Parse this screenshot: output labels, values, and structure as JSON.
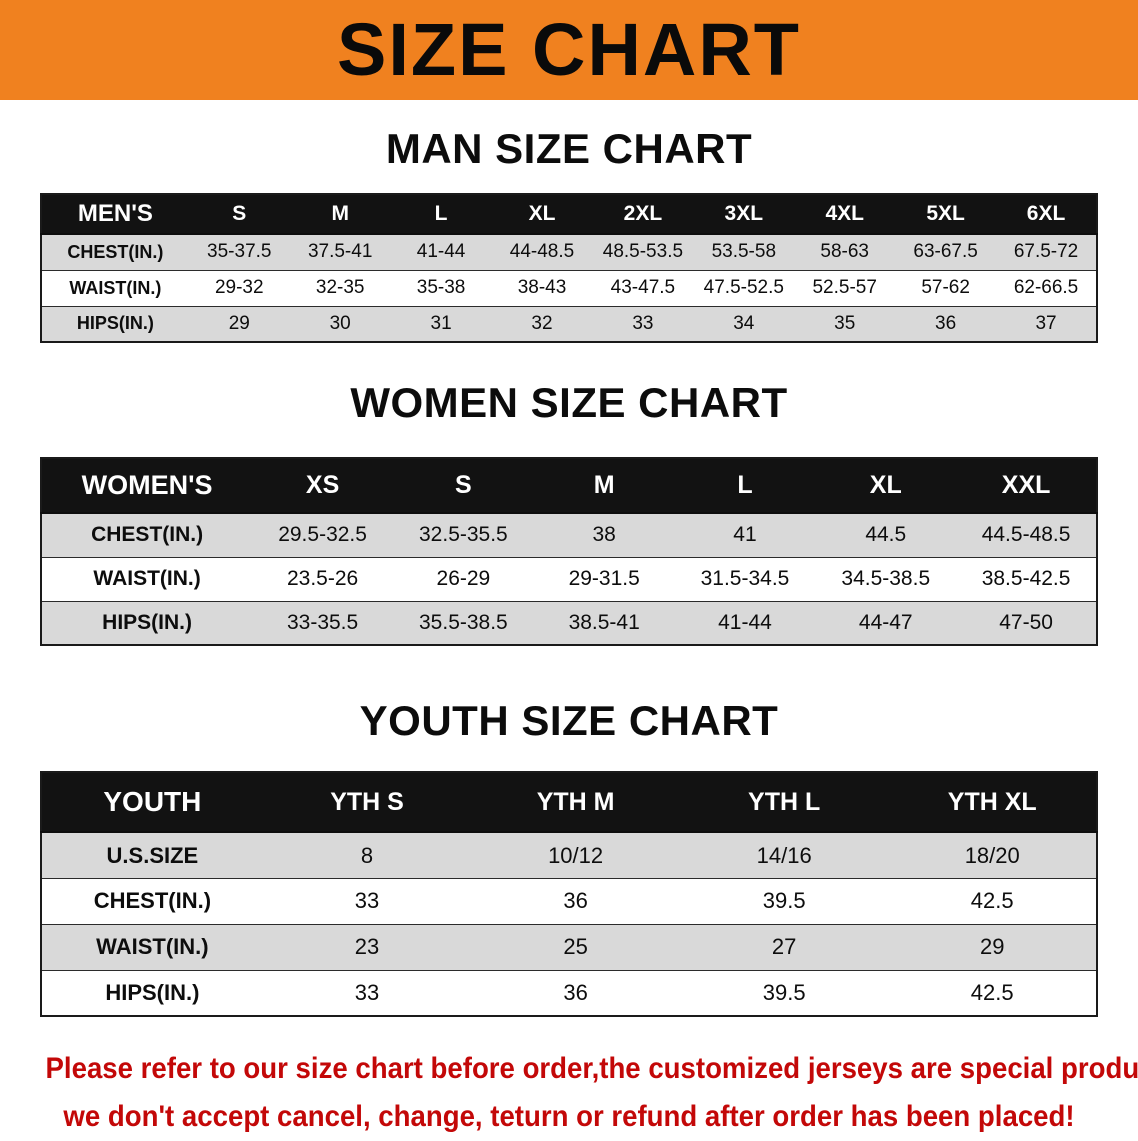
{
  "banner": {
    "title": "SIZE CHART"
  },
  "sections": {
    "man": {
      "heading": "MAN SIZE CHART",
      "table": {
        "header": [
          "MEN'S",
          "S",
          "M",
          "L",
          "XL",
          "2XL",
          "3XL",
          "4XL",
          "5XL",
          "6XL"
        ],
        "rows": [
          [
            "CHEST(IN.)",
            "35-37.5",
            "37.5-41",
            "41-44",
            "44-48.5",
            "48.5-53.5",
            "53.5-58",
            "58-63",
            "63-67.5",
            "67.5-72"
          ],
          [
            "WAIST(IN.)",
            "29-32",
            "32-35",
            "35-38",
            "38-43",
            "43-47.5",
            "47.5-52.5",
            "52.5-57",
            "57-62",
            "62-66.5"
          ],
          [
            "HIPS(IN.)",
            "29",
            "30",
            "31",
            "32",
            "33",
            "34",
            "35",
            "36",
            "37"
          ]
        ]
      }
    },
    "women": {
      "heading": "WOMEN SIZE CHART",
      "table": {
        "header": [
          "WOMEN'S",
          "XS",
          "S",
          "M",
          "L",
          "XL",
          "XXL"
        ],
        "rows": [
          [
            "CHEST(IN.)",
            "29.5-32.5",
            "32.5-35.5",
            "38",
            "41",
            "44.5",
            "44.5-48.5"
          ],
          [
            "WAIST(IN.)",
            "23.5-26",
            "26-29",
            "29-31.5",
            "31.5-34.5",
            "34.5-38.5",
            "38.5-42.5"
          ],
          [
            "HIPS(IN.)",
            "33-35.5",
            "35.5-38.5",
            "38.5-41",
            "41-44",
            "44-47",
            "47-50"
          ]
        ]
      }
    },
    "youth": {
      "heading": "YOUTH SIZE CHART",
      "table": {
        "header": [
          "YOUTH",
          "YTH S",
          "YTH M",
          "YTH L",
          "YTH XL"
        ],
        "rows": [
          [
            "U.S.SIZE",
            "8",
            "10/12",
            "14/16",
            "18/20"
          ],
          [
            "CHEST(IN.)",
            "33",
            "36",
            "39.5",
            "42.5"
          ],
          [
            "WAIST(IN.)",
            "23",
            "25",
            "27",
            "29"
          ],
          [
            "HIPS(IN.)",
            "33",
            "36",
            "39.5",
            "42.5"
          ]
        ]
      }
    }
  },
  "footer": {
    "line1": "Please refer to our size chart before order,the customized jerseys are special products,",
    "line2": "we don't accept cancel, change, teturn or refund after order has been placed!"
  },
  "colors": {
    "banner_bg": "#F0811F",
    "header_bg": "#121212",
    "header_text": "#FFFFFF",
    "row_shade": "#D9D9D9",
    "row_plain": "#FFFFFF",
    "notice_text": "#C30808",
    "body_text": "#0D0D0D",
    "table_border": "#1A1A1A"
  }
}
